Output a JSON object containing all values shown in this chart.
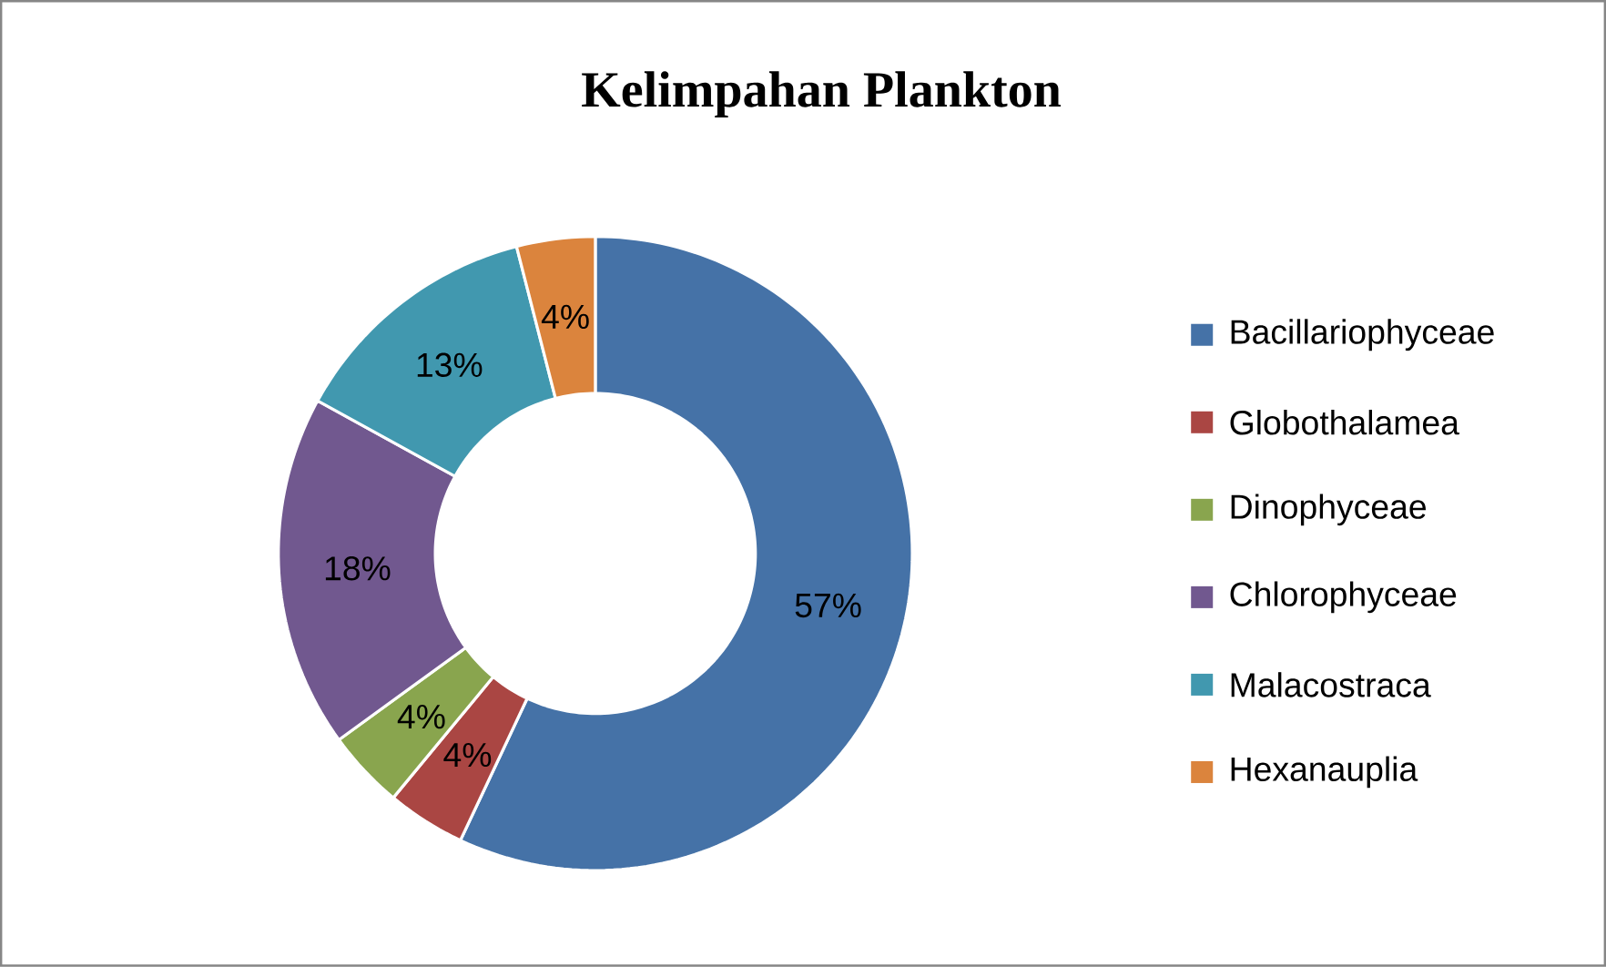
{
  "chart_data": {
    "type": "donut",
    "title": "Kelimpahan Plankton",
    "categories": [
      "Bacillariophyceae",
      "Globothalamea",
      "Dinophyceae",
      "Chlorophyceae",
      "Malacostraca",
      "Hexanauplia"
    ],
    "values": [
      57,
      4,
      4,
      18,
      13,
      4
    ],
    "value_labels": [
      "57%",
      "4%",
      "4%",
      "18%",
      "13%",
      "4%"
    ],
    "colors": [
      "#4572a7",
      "#aa4643",
      "#89a54e",
      "#71588f",
      "#4198af",
      "#db843d"
    ],
    "legend": "right"
  }
}
